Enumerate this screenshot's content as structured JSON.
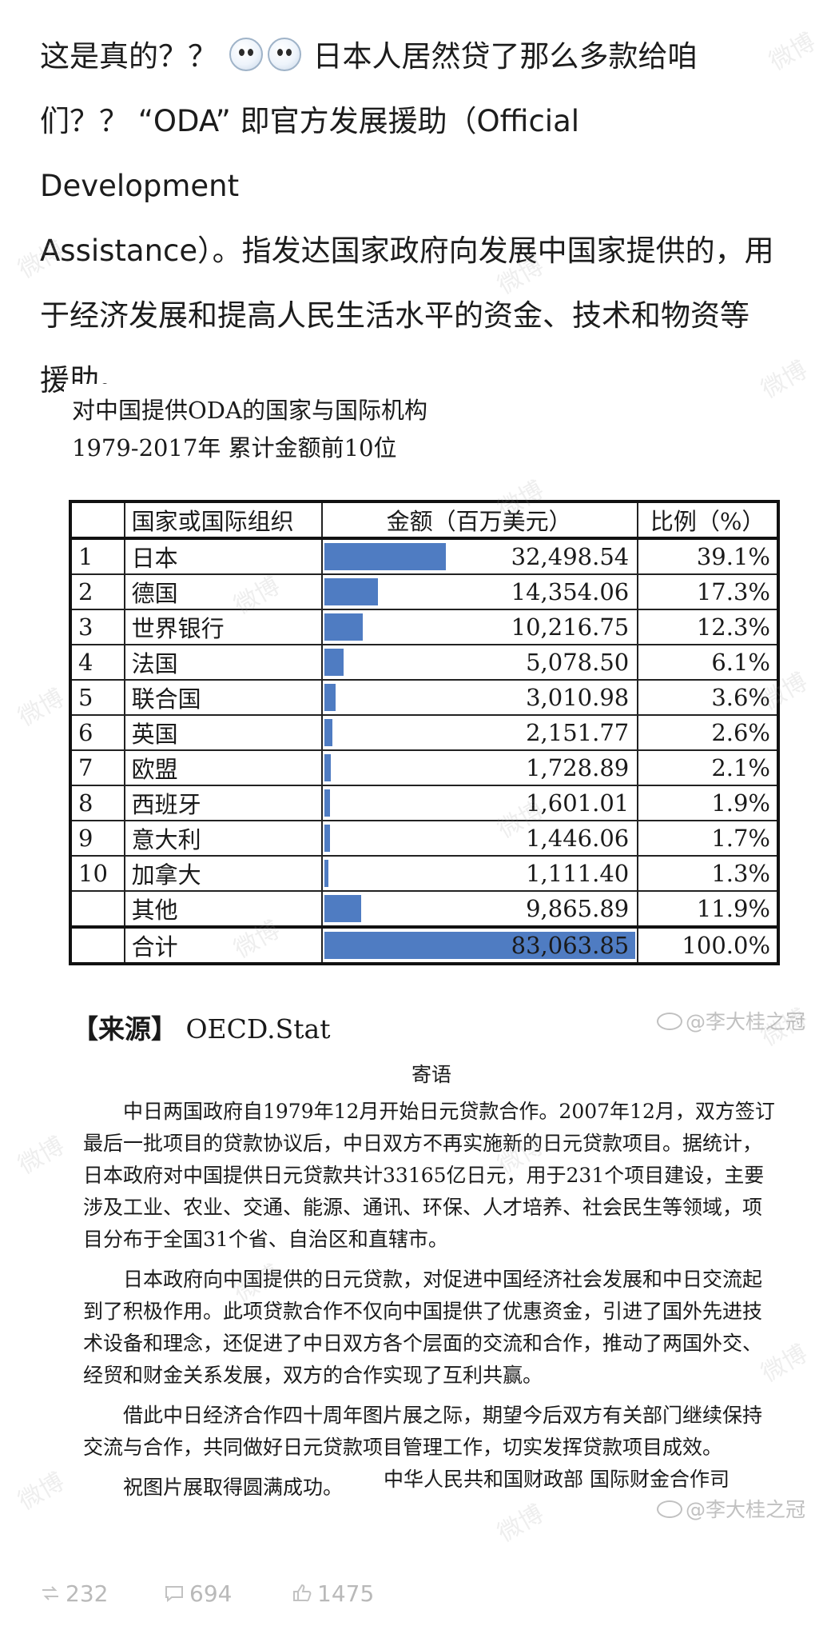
{
  "post": {
    "line1_a": "这是真的？？",
    "line1_b": " 日本人居然贷了那么多款给咱",
    "line2": "们？？ “ODA” 即官方发展援助（Official Development",
    "line3": "Assistance）。指发达国家政府向发展中国家提供的，用",
    "line4": "于经济发展和提高人民生活水平的资金、技术和物资等",
    "line5": "援助。",
    "emojis": [
      "doge-icon",
      "doge-icon"
    ]
  },
  "scan": {
    "title_line1": "对中国提供ODA的国家与国际机构",
    "title_line2": "1979-2017年  累计金额前10位",
    "table": {
      "headers": [
        "",
        "国家或国际组织",
        "金额（百万美元）",
        "比例（%）"
      ],
      "rows": [
        {
          "rank": "1",
          "name": "日本",
          "amount": "32,498.54",
          "pct": "39.1%"
        },
        {
          "rank": "2",
          "name": "德国",
          "amount": "14,354.06",
          "pct": "17.3%"
        },
        {
          "rank": "3",
          "name": "世界银行",
          "amount": "10,216.75",
          "pct": "12.3%"
        },
        {
          "rank": "4",
          "name": "法国",
          "amount": "5,078.50",
          "pct": "6.1%"
        },
        {
          "rank": "5",
          "name": "联合国",
          "amount": "3,010.98",
          "pct": "3.6%"
        },
        {
          "rank": "6",
          "name": "英国",
          "amount": "2,151.77",
          "pct": "2.6%"
        },
        {
          "rank": "7",
          "name": "欧盟",
          "amount": "1,728.89",
          "pct": "2.1%"
        },
        {
          "rank": "8",
          "name": "西班牙",
          "amount": "1,601.01",
          "pct": "1.9%"
        },
        {
          "rank": "9",
          "name": "意大利",
          "amount": "1,446.06",
          "pct": "1.7%"
        },
        {
          "rank": "10",
          "name": "加拿大",
          "amount": "1,111.40",
          "pct": "1.3%"
        },
        {
          "rank": "",
          "name": "其他",
          "amount": "9,865.89",
          "pct": "11.9%"
        }
      ],
      "total": {
        "name": "合计",
        "amount": "83,063.85",
        "pct": "100.0%"
      },
      "bar_values": [
        39.1,
        17.3,
        12.3,
        6.1,
        3.6,
        2.6,
        2.1,
        1.9,
        1.7,
        1.3,
        11.9,
        100.0
      ],
      "bar_color": "#4f7cc2"
    },
    "source_bracket": "【来源】",
    "source_text": "OECD.Stat",
    "letter_title": "寄语",
    "letter_p1": "中日两国政府自1979年12月开始日元贷款合作。2007年12月，双方签订最后一批项目的贷款协议后，中日双方不再实施新的日元贷款项目。据统计，日本政府对中国提供日元贷款共计33165亿日元，用于231个项目建设，主要涉及工业、农业、交通、能源、通讯、环保、人才培养、社会民生等领域，项目分布于全国31个省、自治区和直辖市。",
    "letter_p2": "日本政府向中国提供的日元贷款，对促进中国经济社会发展和中日交流起到了积极作用。此项贷款合作不仅向中国提供了优惠资金，引进了国外先进技术设备和理念，还促进了中日双方各个层面的交流和合作，推动了两国外交、经贸和财金关系发展，双方的合作实现了互利共赢。",
    "letter_p3": "借此中日经济合作四十周年图片展之际，期望今后双方有关部门继续保持交流与合作，共同做好日元贷款项目管理工作，切实发挥贷款项目成效。",
    "letter_p4": "祝图片展取得圆满成功。",
    "signoff": "中华人民共和国财政部    国际财金合作司"
  },
  "watermarks": {
    "handle_text": "@李大桂之冠",
    "weibo_text": "微博"
  },
  "actions": {
    "repost_count": "232",
    "comment_count": "694",
    "like_count": "1475"
  }
}
